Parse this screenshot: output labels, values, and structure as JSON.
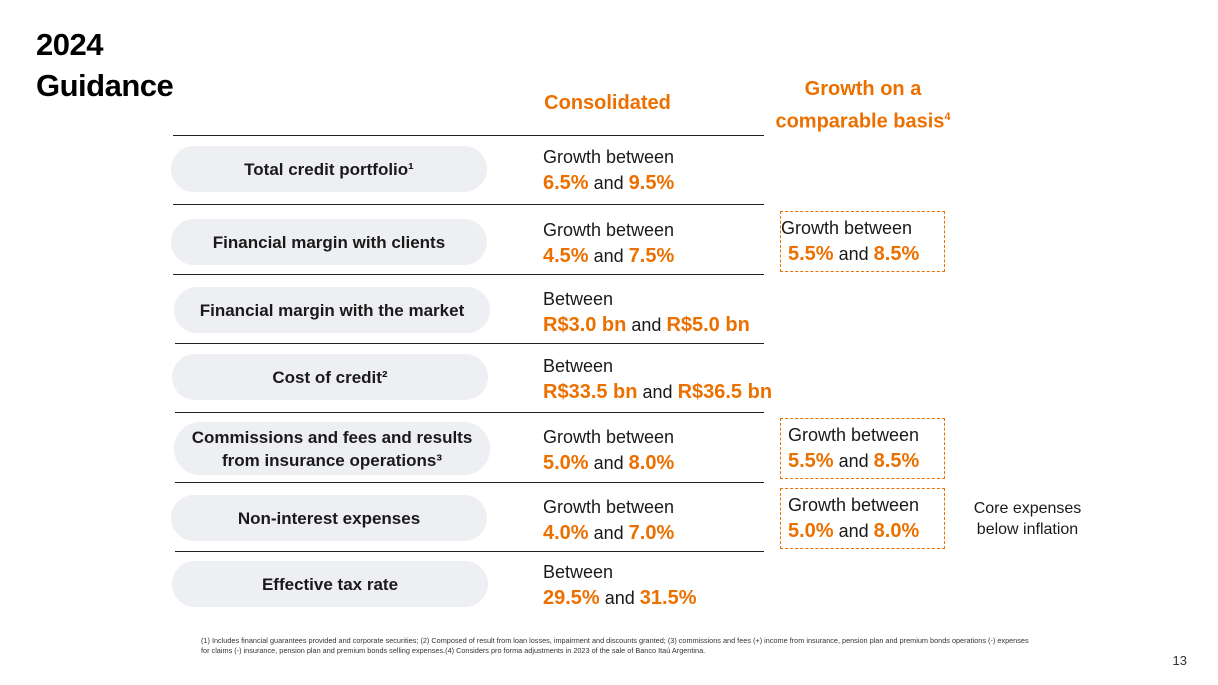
{
  "title": {
    "line1": "2024",
    "line2": "Guidance"
  },
  "columns": {
    "consolidated": "Consolidated",
    "comparable_line1": "Growth on a",
    "comparable_line2": "comparable basis",
    "comparable_sup": "4"
  },
  "rows": [
    {
      "label": "Total credit portfolio¹",
      "prefix": "Growth between",
      "low": "6.5%",
      "and": "and",
      "high": "9.5%"
    },
    {
      "label": "Financial margin with clients",
      "prefix": "Growth between",
      "low": "4.5%",
      "and": "and",
      "high": "7.5%",
      "comparable": {
        "prefix": "Growth between",
        "low": "5.5%",
        "and": "and",
        "high": "8.5%"
      }
    },
    {
      "label": "Financial margin with the market",
      "prefix": "Between",
      "low": "R$3.0 bn",
      "and": "and",
      "high": "R$5.0 bn"
    },
    {
      "label": "Cost of credit²",
      "prefix": "Between",
      "low": "R$33.5 bn",
      "and": "and",
      "high": "R$36.5 bn"
    },
    {
      "label_line1": "Commissions and fees and results",
      "label_line2": "from insurance operations³",
      "prefix": "Growth between",
      "low": "5.0%",
      "and": "and",
      "high": "8.0%",
      "comparable": {
        "prefix": "Growth between",
        "low": "5.5%",
        "and": "and",
        "high": "8.5%"
      }
    },
    {
      "label": "Non-interest expenses",
      "prefix": "Growth between",
      "low": "4.0%",
      "and": "and",
      "high": "7.0%",
      "comparable": {
        "prefix": "Growth between",
        "low": "5.0%",
        "and": "and",
        "high": "8.0%"
      },
      "note_line1": "Core expenses",
      "note_line2": "below inflation"
    },
    {
      "label": "Effective tax rate",
      "prefix": "Between",
      "low": "29.5%",
      "and": "and",
      "high": "31.5%"
    }
  ],
  "footnote": "(1) Includes financial guarantees provided and corporate securities; (2) Composed of result from loan losses, impairment and discounts granted; (3) commissions and fees (+) income from insurance, pension plan and premium bonds operations (-) expenses for claims (-) insurance, pension plan and premium bonds selling expenses.(4) Considers pro forma adjustments in 2023 of the sale of Banco Itaú Argentina.",
  "page_number": "13",
  "colors": {
    "accent": "#ec7000",
    "pill": "#eeeff2"
  }
}
